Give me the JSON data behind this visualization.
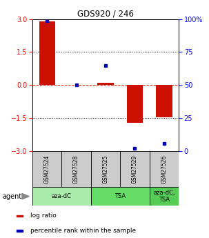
{
  "title": "GDS920 / 246",
  "samples": [
    "GSM27524",
    "GSM27528",
    "GSM27525",
    "GSM27529",
    "GSM27526"
  ],
  "log_ratios": [
    2.9,
    0.0,
    0.12,
    -1.72,
    -1.45
  ],
  "percentile_ranks": [
    99.0,
    50.0,
    65.0,
    2.0,
    6.0
  ],
  "bar_color": "#cc1100",
  "dot_color": "#0000bb",
  "ylim": [
    -3,
    3
  ],
  "yticks_left": [
    -3,
    -1.5,
    0,
    1.5,
    3
  ],
  "yticks_right": [
    0,
    25,
    50,
    75,
    100
  ],
  "hlines": [
    -1.5,
    0,
    1.5
  ],
  "hline_colors": [
    "black",
    "red",
    "black"
  ],
  "hline_styles": [
    "dotted",
    "dashed",
    "dotted"
  ],
  "agent_groups": [
    {
      "label": "aza-dC",
      "span": [
        0,
        2
      ],
      "color": "#aaeaaa"
    },
    {
      "label": "TSA",
      "span": [
        2,
        4
      ],
      "color": "#66dd66"
    },
    {
      "label": "aza-dC,\nTSA",
      "span": [
        4,
        5
      ],
      "color": "#55cc55"
    }
  ],
  "sample_box_color": "#cccccc",
  "legend_items": [
    {
      "color": "#cc1100",
      "label": "log ratio"
    },
    {
      "color": "#0000bb",
      "label": "percentile rank within the sample"
    }
  ],
  "bar_width": 0.55
}
